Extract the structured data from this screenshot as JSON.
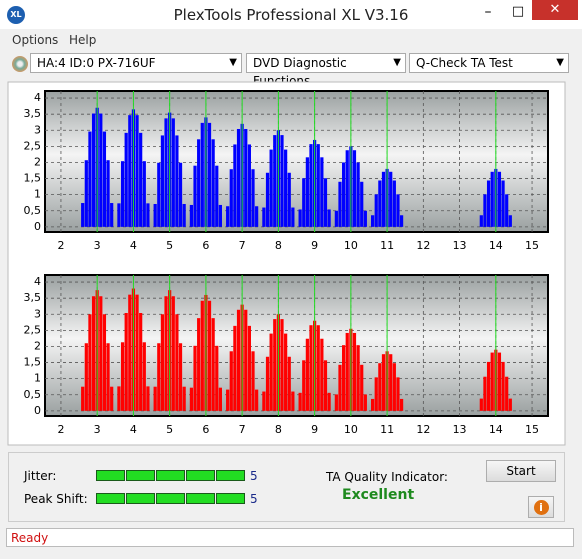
{
  "window": {
    "icon": "XL",
    "title": "PlexTools Professional XL V3.16"
  },
  "menu": [
    "Options",
    "Help"
  ],
  "selectors": [
    "HA:4 ID:0  PX-716UF",
    "DVD Diagnostic Functions",
    "Q-Check TA Test"
  ],
  "chart_data": [
    {
      "type": "bar",
      "color": "#0000ff",
      "grid": true,
      "reference_color": "#22dd22",
      "reference_lines": [
        3,
        4,
        5,
        6,
        7,
        8,
        9,
        10,
        11,
        14
      ],
      "xlim": [
        1.56,
        15.44
      ],
      "ylim": [
        -0.16,
        4.22
      ],
      "xticks": [
        2,
        3,
        4,
        5,
        6,
        7,
        8,
        9,
        10,
        11,
        12,
        13,
        14,
        15
      ],
      "yticks": [
        0,
        {
          "value": 0.5,
          "label": "0,5"
        },
        1,
        {
          "value": 1.5,
          "label": "1,5"
        },
        2,
        {
          "value": 2.5,
          "label": "2,5"
        },
        3,
        {
          "value": 3.5,
          "label": "3,5"
        },
        4
      ],
      "x": [
        2.6,
        2.7,
        2.8,
        2.9,
        3,
        3.1,
        3.2,
        3.3,
        3.4,
        3.6,
        3.7,
        3.8,
        3.9,
        4,
        4.1,
        4.2,
        4.3,
        4.4,
        4.6,
        4.7,
        4.8,
        4.9,
        5,
        5.1,
        5.2,
        5.3,
        5.4,
        5.6,
        5.7,
        5.8,
        5.9,
        6,
        6.1,
        6.2,
        6.3,
        6.4,
        6.6,
        6.7,
        6.8,
        6.9,
        7,
        7.1,
        7.2,
        7.3,
        7.4,
        7.6,
        7.7,
        7.8,
        7.9,
        8,
        8.1,
        8.2,
        8.3,
        8.4,
        8.6,
        8.7,
        8.8,
        8.9,
        9,
        9.1,
        9.2,
        9.3,
        9.4,
        9.6,
        9.7,
        9.8,
        9.9,
        10,
        10.1,
        10.2,
        10.3,
        10.4,
        10.6,
        10.7,
        10.8,
        10.9,
        11,
        11.1,
        11.2,
        11.3,
        11.4,
        13.6,
        13.7,
        13.8,
        13.9,
        14,
        14.1,
        14.2,
        14.3,
        14.4
      ],
      "values": [
        0.74,
        2.07,
        2.96,
        3.52,
        3.7,
        3.52,
        2.96,
        2.07,
        0.74,
        0.73,
        2.04,
        2.92,
        3.47,
        3.65,
        3.47,
        2.92,
        2.04,
        0.73,
        0.71,
        1.99,
        2.84,
        3.37,
        3.55,
        3.37,
        2.84,
        1.99,
        0.71,
        0.68,
        1.9,
        2.72,
        3.23,
        3.4,
        3.23,
        2.72,
        1.9,
        0.68,
        0.64,
        1.79,
        2.56,
        3.04,
        3.2,
        3.04,
        2.56,
        1.79,
        0.64,
        0.6,
        1.68,
        2.4,
        2.85,
        3,
        2.85,
        2.4,
        1.68,
        0.6,
        0.54,
        1.51,
        2.16,
        2.57,
        2.7,
        2.57,
        2.16,
        1.51,
        0.54,
        0.5,
        1.4,
        2,
        2.38,
        2.5,
        2.38,
        2,
        1.4,
        0.5,
        0.36,
        1.01,
        1.44,
        1.71,
        1.8,
        1.71,
        1.44,
        1.01,
        0.36,
        0.36,
        1.01,
        1.44,
        1.71,
        1.8,
        1.71,
        1.44,
        1.01,
        0.36
      ]
    },
    {
      "type": "bar",
      "color": "#ff0000",
      "grid": true,
      "reference_color": "#22dd22",
      "reference_lines": [
        3,
        4,
        5,
        6,
        7,
        8,
        9,
        10,
        11,
        14
      ],
      "xlim": [
        1.56,
        15.44
      ],
      "ylim": [
        -0.16,
        4.22
      ],
      "xticks": [
        2,
        3,
        4,
        5,
        6,
        7,
        8,
        9,
        10,
        11,
        12,
        13,
        14,
        15
      ],
      "yticks": [
        0,
        {
          "value": 0.5,
          "label": "0,5"
        },
        1,
        {
          "value": 1.5,
          "label": "1,5"
        },
        2,
        {
          "value": 2.5,
          "label": "2,5"
        },
        3,
        {
          "value": 3.5,
          "label": "3,5"
        },
        4
      ],
      "x": [
        2.6,
        2.7,
        2.8,
        2.9,
        3,
        3.1,
        3.2,
        3.3,
        3.4,
        3.6,
        3.7,
        3.8,
        3.9,
        4,
        4.1,
        4.2,
        4.3,
        4.4,
        4.6,
        4.7,
        4.8,
        4.9,
        5,
        5.1,
        5.2,
        5.3,
        5.4,
        5.6,
        5.7,
        5.8,
        5.9,
        6,
        6.1,
        6.2,
        6.3,
        6.4,
        6.6,
        6.7,
        6.8,
        6.9,
        7,
        7.1,
        7.2,
        7.3,
        7.4,
        7.6,
        7.7,
        7.8,
        7.9,
        8,
        8.1,
        8.2,
        8.3,
        8.4,
        8.6,
        8.7,
        8.8,
        8.9,
        9,
        9.1,
        9.2,
        9.3,
        9.4,
        9.6,
        9.7,
        9.8,
        9.9,
        10,
        10.1,
        10.2,
        10.3,
        10.4,
        10.6,
        10.7,
        10.8,
        10.9,
        11,
        11.1,
        11.2,
        11.3,
        11.4,
        13.6,
        13.7,
        13.8,
        13.9,
        14,
        14.1,
        14.2,
        14.3,
        14.4
      ],
      "values": [
        0.75,
        2.1,
        3,
        3.56,
        3.75,
        3.56,
        3,
        2.1,
        0.75,
        0.76,
        2.13,
        3.04,
        3.61,
        3.8,
        3.61,
        3.04,
        2.13,
        0.76,
        0.75,
        2.1,
        3,
        3.56,
        3.75,
        3.56,
        3,
        2.1,
        0.75,
        0.72,
        2.02,
        2.88,
        3.42,
        3.6,
        3.42,
        2.88,
        2.02,
        0.72,
        0.66,
        1.85,
        2.64,
        3.14,
        3.3,
        3.14,
        2.64,
        1.85,
        0.66,
        0.6,
        1.68,
        2.4,
        2.85,
        3,
        2.85,
        2.4,
        1.68,
        0.6,
        0.56,
        1.57,
        2.24,
        2.66,
        2.8,
        2.66,
        2.24,
        1.57,
        0.56,
        0.51,
        1.43,
        2.04,
        2.42,
        2.55,
        2.42,
        2.04,
        1.43,
        0.51,
        0.37,
        1.04,
        1.48,
        1.76,
        1.85,
        1.76,
        1.48,
        1.04,
        0.37,
        0.38,
        1.06,
        1.52,
        1.81,
        1.9,
        1.81,
        1.52,
        1.06,
        0.38
      ]
    }
  ],
  "results": {
    "jitter": {
      "label": "Jitter:",
      "value": 5
    },
    "peak_shift": {
      "label": "Peak Shift:",
      "value": 5
    },
    "quality_label": "TA Quality Indicator:",
    "quality": "Excellent"
  },
  "buttons": {
    "start": "Start",
    "info": "i"
  },
  "status": "Ready"
}
